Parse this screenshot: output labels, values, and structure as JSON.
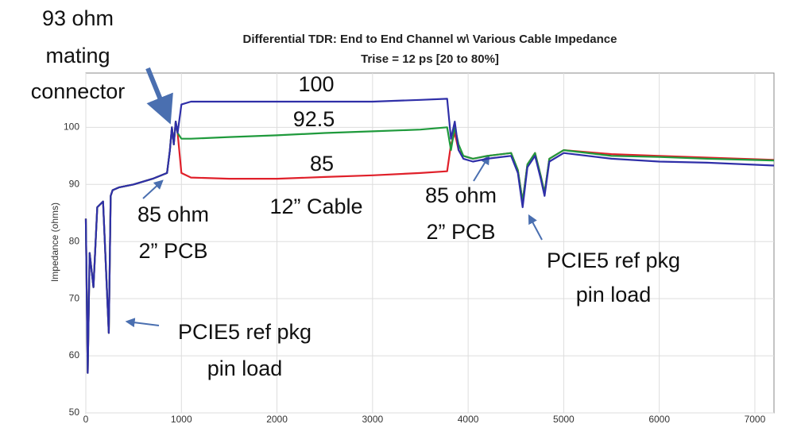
{
  "chart_data": {
    "type": "line",
    "title": "Differential TDR: End to End Channel w\\ Various Cable Impedance",
    "subtitle": "Trise = 12 ps [20 to 80%]",
    "y_label": "Impedance (ohms)",
    "x": [
      0,
      20,
      40,
      80,
      120,
      180,
      240,
      260,
      280,
      350,
      500,
      700,
      850,
      880,
      900,
      920,
      940,
      960,
      1000,
      1100,
      1500,
      2000,
      2500,
      3000,
      3500,
      3780,
      3820,
      3860,
      3900,
      3950,
      4050,
      4200,
      4450,
      4520,
      4570,
      4620,
      4700,
      4760,
      4800,
      4850,
      5000,
      5500,
      6000,
      6500,
      7200
    ],
    "series": [
      {
        "name": "85",
        "color": "#e0202a",
        "values": [
          84,
          57,
          78,
          72,
          86,
          87,
          64,
          88,
          89,
          89.5,
          90,
          91,
          92,
          96,
          100,
          97,
          101,
          99,
          92,
          91.2,
          91,
          91,
          91.3,
          91.6,
          92,
          92.3,
          97,
          99,
          96,
          95,
          94.5,
          95,
          95.5,
          92.5,
          87,
          93.5,
          95.5,
          91.5,
          88.5,
          94.5,
          96,
          95.3,
          95,
          94.7,
          94.3
        ]
      },
      {
        "name": "92.5",
        "color": "#1f9a3c",
        "values": [
          84,
          57,
          78,
          72,
          86,
          87,
          64,
          88,
          89,
          89.5,
          90,
          91,
          92,
          96,
          100,
          97,
          101,
          99,
          98,
          98,
          98.3,
          98.6,
          99,
          99.3,
          99.6,
          100,
          96,
          100,
          97,
          95,
          94.5,
          95,
          95.5,
          92.5,
          87,
          93.5,
          95.5,
          91.5,
          88.5,
          94.5,
          96,
          95,
          94.8,
          94.5,
          94.2
        ]
      },
      {
        "name": "100",
        "color": "#2f2fa8",
        "values": [
          84,
          57,
          78,
          72,
          86,
          87,
          64,
          88,
          89,
          89.5,
          90,
          91,
          92,
          96,
          100,
          97,
          101,
          99,
          104,
          104.5,
          104.5,
          104.5,
          104.5,
          104.5,
          104.8,
          105,
          98,
          101,
          96,
          94.5,
          94,
          94.5,
          95,
          92,
          86,
          93,
          95,
          91,
          88,
          94,
          95.5,
          94.5,
          94,
          93.8,
          93.3
        ]
      }
    ],
    "xlim": [
      0,
      7200
    ],
    "ylim": [
      50,
      109.5
    ],
    "xticks": [
      0,
      1000,
      2000,
      3000,
      4000,
      5000,
      6000,
      7000
    ],
    "yticks": [
      50,
      60,
      70,
      80,
      90,
      100
    ],
    "grid": true,
    "annotations": [
      "93 ohm",
      "mating",
      "connector",
      "85 ohm",
      "2” PCB",
      "12” Cable",
      "85 ohm",
      "2” PCB",
      "PCIE5 ref pkg",
      "pin load",
      "PCIE5 ref pkg",
      "pin load"
    ]
  }
}
